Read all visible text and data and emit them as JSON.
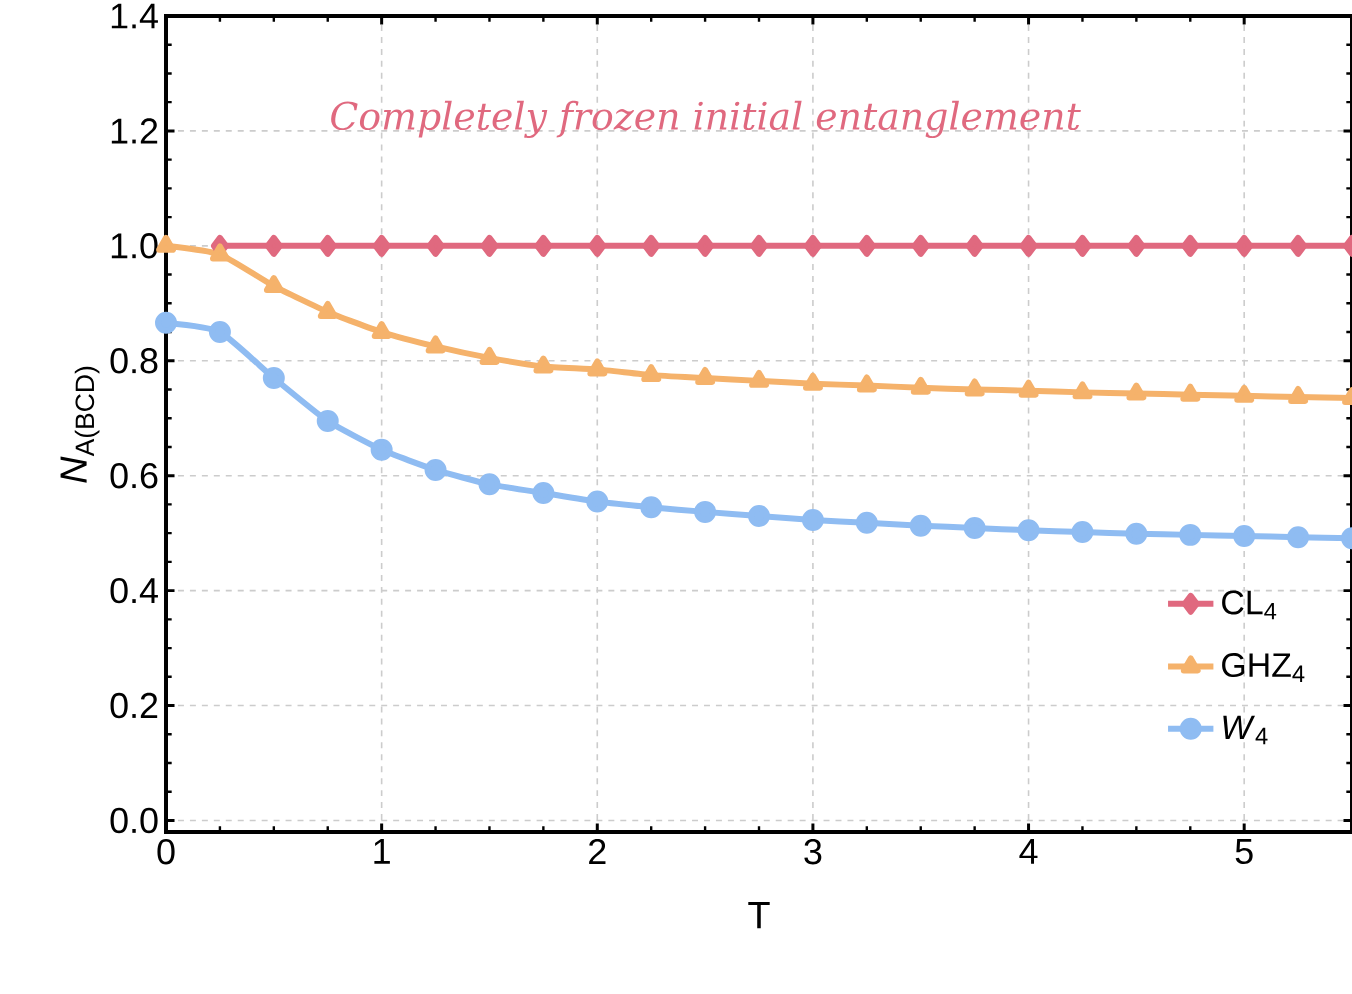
{
  "chart_data": {
    "type": "line",
    "xlabel": "T",
    "ylabel": "*N*$_{A(BCD)}$",
    "annotations": [
      "Completely frozen initial entanglement"
    ],
    "x": [
      0,
      0.25,
      0.5,
      0.75,
      1,
      1.25,
      1.5,
      1.75,
      2,
      2.25,
      2.5,
      2.75,
      3,
      3.25,
      3.5,
      3.75,
      4,
      4.25,
      4.5,
      4.75,
      5,
      5.25,
      5.5
    ],
    "series": [
      {
        "name": "CL$_{4}$",
        "color": "#e0697f",
        "marker": "diamond",
        "values": [
          null,
          1,
          1,
          1,
          1,
          1,
          1,
          1,
          1,
          1,
          1,
          1,
          1,
          1,
          1,
          1,
          1,
          1,
          1,
          1,
          1,
          1,
          1
        ]
      },
      {
        "name": "GHZ$_{4}$",
        "color": "#f5b26b",
        "marker": "triangle",
        "values": [
          1,
          0.985,
          0.93,
          0.885,
          0.85,
          0.825,
          0.805,
          0.79,
          0.785,
          0.775,
          0.77,
          0.765,
          0.76,
          0.757,
          0.753,
          0.75,
          0.748,
          0.745,
          0.743,
          0.741,
          0.739,
          0.737,
          0.735
        ]
      },
      {
        "name": "*W*$_{4}$",
        "color": "#8fbcf2",
        "marker": "circle",
        "values": [
          0.866,
          0.85,
          0.77,
          0.695,
          0.645,
          0.61,
          0.585,
          0.57,
          0.555,
          0.545,
          0.537,
          0.53,
          0.523,
          0.518,
          0.513,
          0.509,
          0.505,
          0.502,
          0.499,
          0.497,
          0.495,
          0.493,
          0.491
        ]
      }
    ],
    "xlim": [
      0,
      5.5
    ],
    "ylim": [
      -0.02,
      1.4
    ],
    "xticks": [
      0,
      1,
      2,
      3,
      4,
      5
    ],
    "yticks": [
      {
        "value": 0,
        "label": "0.0"
      },
      {
        "value": 0.2,
        "label": "0.2"
      },
      {
        "value": 0.4,
        "label": "0.4"
      },
      {
        "value": 0.6,
        "label": "0.6"
      },
      {
        "value": 0.8,
        "label": "0.8"
      },
      {
        "value": 1,
        "label": "1.0"
      },
      {
        "value": 1.2,
        "label": "1.2"
      },
      {
        "value": 1.4,
        "label": "1.4"
      }
    ],
    "grid": true,
    "legend": "bottom right",
    "line_style": "solid"
  }
}
